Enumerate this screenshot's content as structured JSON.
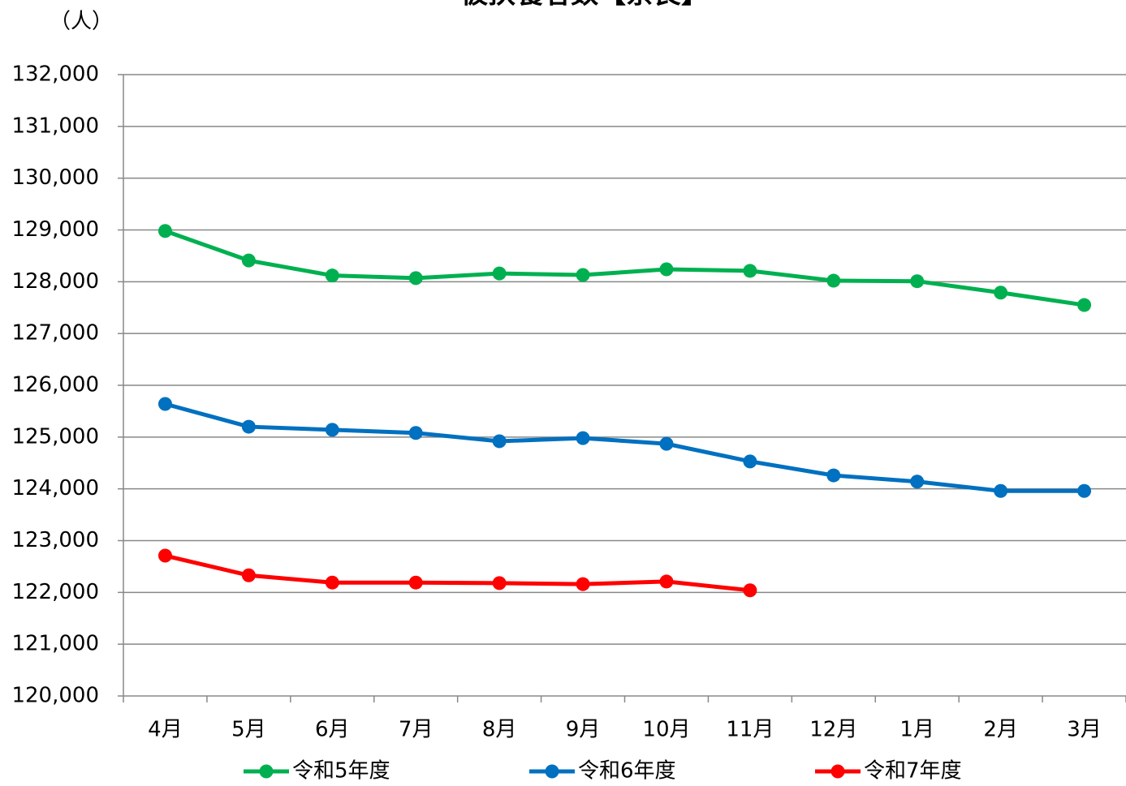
{
  "chart_data": {
    "type": "line",
    "title": "被扶養者数【奈良】",
    "y_label": "（人）",
    "categories": [
      "4月",
      "5月",
      "6月",
      "7月",
      "8月",
      "9月",
      "10月",
      "11月",
      "12月",
      "1月",
      "2月",
      "3月"
    ],
    "series": [
      {
        "name": "令和5年度",
        "color": "#00b050",
        "values": [
          128980,
          128410,
          128120,
          128070,
          128160,
          128130,
          128240,
          128210,
          128020,
          128010,
          127790,
          127550
        ]
      },
      {
        "name": "令和6年度",
        "color": "#0070c0",
        "values": [
          125640,
          125200,
          125140,
          125080,
          124920,
          124980,
          124870,
          124530,
          124260,
          124140,
          123960,
          123960
        ]
      },
      {
        "name": "令和7年度",
        "color": "#ff0000",
        "values": [
          122710,
          122330,
          122190,
          122190,
          122180,
          122160,
          122210,
          122040,
          null,
          null,
          null,
          null
        ]
      }
    ],
    "ylim": [
      120000,
      132000
    ],
    "yticks": [
      {
        "value": 120000,
        "label": "120,000"
      },
      {
        "value": 121000,
        "label": "121,000"
      },
      {
        "value": 122000,
        "label": "122,000"
      },
      {
        "value": 123000,
        "label": "123,000"
      },
      {
        "value": 124000,
        "label": "124,000"
      },
      {
        "value": 125000,
        "label": "125,000"
      },
      {
        "value": 126000,
        "label": "126,000"
      },
      {
        "value": 127000,
        "label": "127,000"
      },
      {
        "value": 128000,
        "label": "128,000"
      },
      {
        "value": 129000,
        "label": "129,000"
      },
      {
        "value": 130000,
        "label": "130,000"
      },
      {
        "value": 131000,
        "label": "131,000"
      },
      {
        "value": 132000,
        "label": "132,000"
      }
    ],
    "grid": true
  }
}
